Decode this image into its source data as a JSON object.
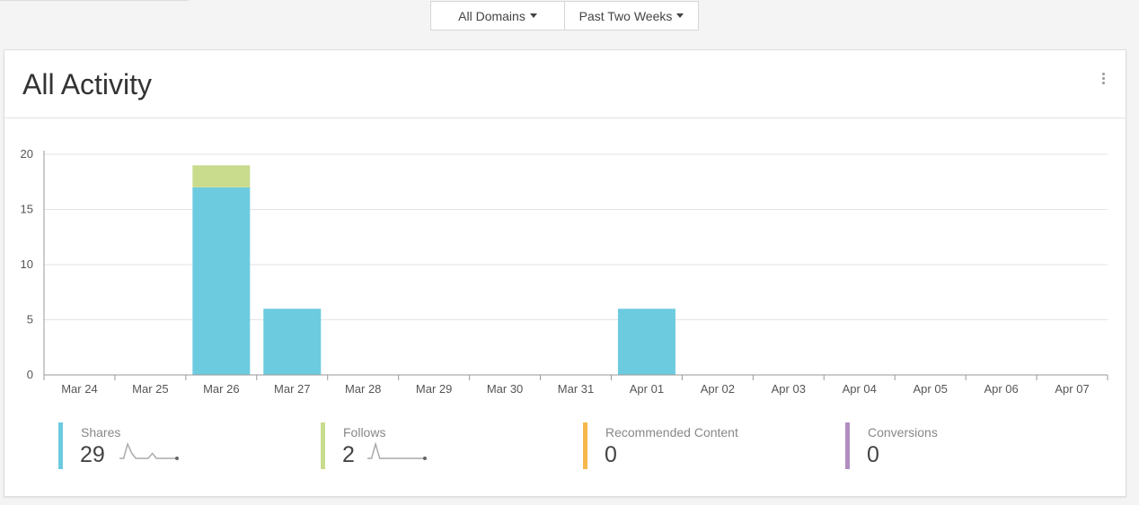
{
  "filters": {
    "domains_label": "All Domains",
    "range_label": "Past Two Weeks"
  },
  "card": {
    "title": "All Activity",
    "menu_icon": "kebab-vertical-icon"
  },
  "colors": {
    "shares": "#6dcbe0",
    "follows": "#c9dc8e",
    "recommended": "#f6b84b",
    "conversions": "#b08ec0"
  },
  "chart_data": {
    "type": "bar",
    "stacked": true,
    "categories": [
      "Mar 24",
      "Mar 25",
      "Mar 26",
      "Mar 27",
      "Mar 28",
      "Mar 29",
      "Mar 30",
      "Mar 31",
      "Apr 01",
      "Apr 02",
      "Apr 03",
      "Apr 04",
      "Apr 05",
      "Apr 06",
      "Apr 07"
    ],
    "series": [
      {
        "name": "Shares",
        "color": "#6dcbe0",
        "values": [
          0,
          0,
          17,
          6,
          0,
          0,
          0,
          0,
          6,
          0,
          0,
          0,
          0,
          0,
          0
        ]
      },
      {
        "name": "Follows",
        "color": "#c9dc8e",
        "values": [
          0,
          0,
          2,
          0,
          0,
          0,
          0,
          0,
          0,
          0,
          0,
          0,
          0,
          0,
          0
        ]
      }
    ],
    "yticks": [
      "0",
      "5",
      "10",
      "15",
      "20"
    ],
    "ylim": [
      0,
      20
    ],
    "grid": true,
    "legend": "bottom"
  },
  "legend": [
    {
      "label": "Shares",
      "value": "29",
      "color": "#6dcbe0",
      "sparkline": [
        0,
        0,
        17,
        6,
        0,
        0,
        0,
        0,
        6,
        0,
        0,
        0,
        0,
        0,
        0
      ]
    },
    {
      "label": "Follows",
      "value": "2",
      "color": "#c9dc8e",
      "sparkline": [
        0,
        0,
        2,
        0,
        0,
        0,
        0,
        0,
        0,
        0,
        0,
        0,
        0,
        0,
        0
      ]
    },
    {
      "label": "Recommended Content",
      "value": "0",
      "color": "#f6b84b"
    },
    {
      "label": "Conversions",
      "value": "0",
      "color": "#b08ec0"
    }
  ]
}
